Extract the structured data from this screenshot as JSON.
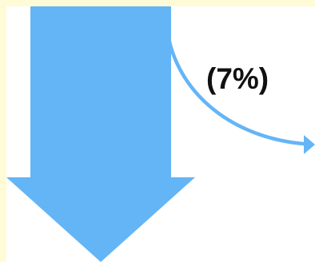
{
  "diagram": {
    "branch_label": "(7%)",
    "main_flow_color": "#64b5f6",
    "branch_flow_color": "#64b5f6",
    "frame_color": "#fefbd6",
    "background_color": "#ffffff"
  }
}
